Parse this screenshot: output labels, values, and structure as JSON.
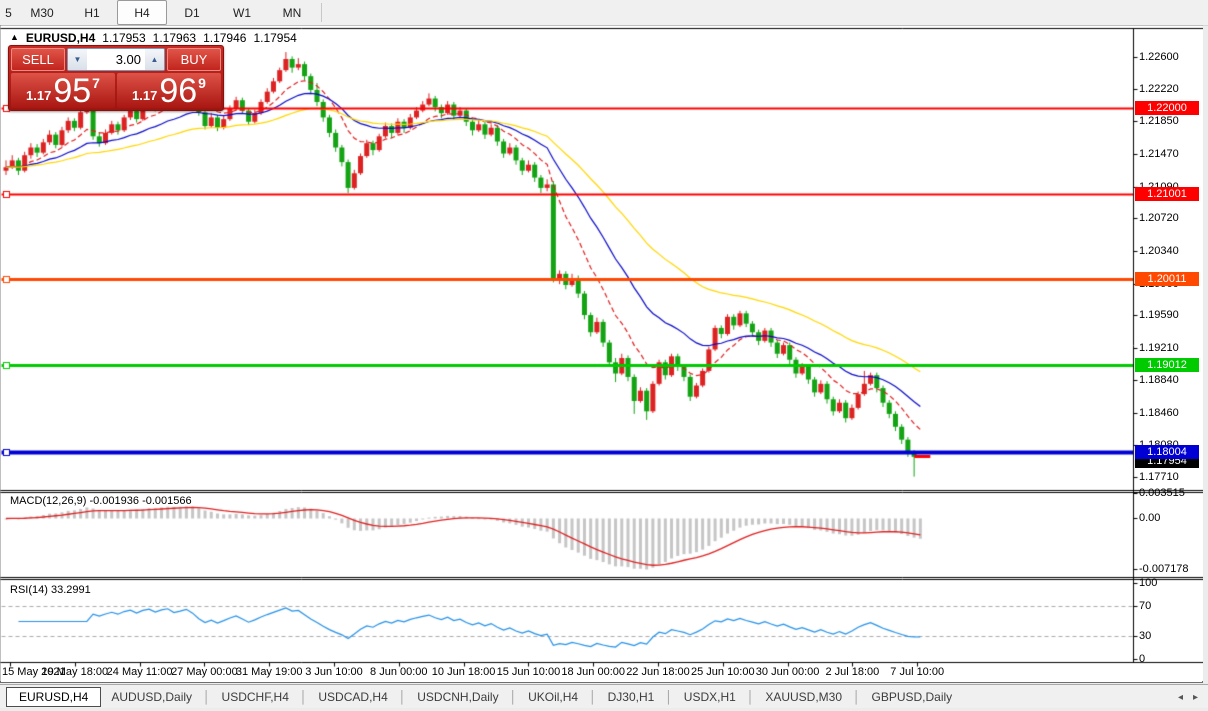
{
  "toolbar": {
    "timeframes": [
      "5",
      "M30",
      "H1",
      "H4",
      "D1",
      "W1",
      "MN"
    ],
    "active": "H4"
  },
  "header": {
    "collapse_icon": "▲",
    "symbol": "EURUSD,H4",
    "open": "1.17953",
    "high": "1.17963",
    "low": "1.17946",
    "close": "1.17954"
  },
  "trade_panel": {
    "sell_label": "SELL",
    "buy_label": "BUY",
    "volume": "3.00",
    "spinner_down_icon": "▼",
    "spinner_up_icon": "▲",
    "sell_price": {
      "prefix": "1.17",
      "big": "95",
      "sup": "7"
    },
    "buy_price": {
      "prefix": "1.17",
      "big": "96",
      "sup": "9"
    }
  },
  "price_axis": {
    "ticks": [
      "1.22600",
      "1.22220",
      "1.21850",
      "1.21470",
      "1.21090",
      "1.20720",
      "1.20340",
      "1.19960",
      "1.19590",
      "1.19210",
      "1.18840",
      "1.18460",
      "1.18080",
      "1.17710"
    ]
  },
  "macd_pane": {
    "label": "MACD(12,26,9) -0.001936 -0.001566",
    "ticks": [
      "0.003515",
      "0.00",
      "-0.007178"
    ]
  },
  "rsi_pane": {
    "label": "RSI(14) 33.2991",
    "ticks": [
      "100",
      "70",
      "30",
      "0"
    ],
    "levels": [
      70,
      30
    ]
  },
  "time_axis": {
    "labels": [
      "15 May 2021",
      "19 May 18:00",
      "24 May 11:00",
      "27 May 00:00",
      "31 May 19:00",
      "3 Jun 10:00",
      "8 Jun 00:00",
      "10 Jun 18:00",
      "15 Jun 10:00",
      "18 Jun 00:00",
      "22 Jun 18:00",
      "25 Jun 10:00",
      "30 Jun 00:00",
      "2 Jul 18:00",
      "7 Jul 10:00"
    ]
  },
  "tabs": {
    "items": [
      "EURUSD,H4",
      "AUDUSD,Daily",
      "USDCHF,H4",
      "USDCAD,H4",
      "USDCNH,Daily",
      "UKOil,H4",
      "DJ30,H1",
      "USDX,H1",
      "XAUUSD,M30",
      "GBPUSD,Daily"
    ],
    "active": "EURUSD,H4",
    "nav_left_icon": "◂",
    "nav_right_icon": "▸"
  },
  "chart_data": {
    "type": "candlestick",
    "symbol": "EURUSD",
    "timeframe": "H4",
    "ylim": [
      1.1757,
      1.229
    ],
    "bull_color": "#dd2222",
    "bear_color": "#13a313",
    "hlines": [
      {
        "label": "1.22000",
        "value": 1.22,
        "color": "#fe0000",
        "width": 2
      },
      {
        "label": "1.21001",
        "value": 1.21001,
        "color": "#fe0000",
        "width": 2
      },
      {
        "label": "1.20011",
        "value": 1.20011,
        "color": "#ff4800",
        "width": 3
      },
      {
        "label": "1.19012",
        "value": 1.19012,
        "color": "#00ca00",
        "width": 3
      },
      {
        "label": "1.18004",
        "value": 1.18004,
        "color": "#0000d4",
        "width": 4
      }
    ],
    "current_price": {
      "label": "1.17954",
      "value": 1.17954,
      "tag_color": "#000000",
      "dash_color": "#fe0000"
    },
    "overlays": [
      {
        "name": "MA-fast",
        "period": 10,
        "color": "#e02020",
        "dashed": true
      },
      {
        "name": "MA-mid",
        "period": 22,
        "color": "#0a0ac8",
        "dashed": false
      },
      {
        "name": "MA-slow",
        "period": 45,
        "color": "#ffd700",
        "dashed": false
      }
    ],
    "indicators": [
      {
        "name": "MACD",
        "params": [
          12,
          26,
          9
        ],
        "values": [
          -0.001936,
          -0.001566
        ],
        "hist_color": "#c6c6c6",
        "signal_color": "#e02020",
        "range": [
          -0.007178,
          0.003515
        ]
      },
      {
        "name": "RSI",
        "params": [
          14
        ],
        "value": 33.2991,
        "color": "#2491e8",
        "levels": [
          70,
          30
        ]
      }
    ],
    "candles": [
      [
        1.2128,
        1.214,
        1.2123,
        1.2132
      ],
      [
        1.2132,
        1.2146,
        1.213,
        1.214
      ],
      [
        1.214,
        1.2143,
        1.2123,
        1.2128
      ],
      [
        1.2128,
        1.215,
        1.2126,
        1.2146
      ],
      [
        1.2146,
        1.216,
        1.2142,
        1.2155
      ],
      [
        1.2155,
        1.2159,
        1.2144,
        1.2149
      ],
      [
        1.2149,
        1.2165,
        1.2147,
        1.2161
      ],
      [
        1.2161,
        1.2175,
        1.2158,
        1.217
      ],
      [
        1.217,
        1.2173,
        1.2154,
        1.2158
      ],
      [
        1.2158,
        1.2179,
        1.2156,
        1.2175
      ],
      [
        1.2175,
        1.219,
        1.2172,
        1.2186
      ],
      [
        1.2186,
        1.2189,
        1.2174,
        1.2178
      ],
      [
        1.2178,
        1.2199,
        1.2176,
        1.2196
      ],
      [
        1.2196,
        1.2212,
        1.2194,
        1.2205
      ],
      [
        1.2205,
        1.2208,
        1.2164,
        1.2168
      ],
      [
        1.2168,
        1.2173,
        1.2156,
        1.216
      ],
      [
        1.216,
        1.2176,
        1.2158,
        1.2172
      ],
      [
        1.2172,
        1.2186,
        1.217,
        1.2182
      ],
      [
        1.2182,
        1.2185,
        1.217,
        1.2175
      ],
      [
        1.2175,
        1.2193,
        1.2173,
        1.219
      ],
      [
        1.219,
        1.2202,
        1.2187,
        1.2198
      ],
      [
        1.2198,
        1.2201,
        1.2184,
        1.2188
      ],
      [
        1.2188,
        1.2207,
        1.2186,
        1.2204
      ],
      [
        1.2204,
        1.2216,
        1.2201,
        1.2212
      ],
      [
        1.2212,
        1.2215,
        1.2197,
        1.2202
      ],
      [
        1.2202,
        1.2219,
        1.22,
        1.2215
      ],
      [
        1.2215,
        1.2226,
        1.2212,
        1.2222
      ],
      [
        1.2222,
        1.2225,
        1.2206,
        1.221
      ],
      [
        1.221,
        1.2223,
        1.2208,
        1.2218
      ],
      [
        1.2218,
        1.2232,
        1.2216,
        1.2228
      ],
      [
        1.2228,
        1.2231,
        1.2212,
        1.2216
      ],
      [
        1.2216,
        1.2219,
        1.2192,
        1.2196
      ],
      [
        1.2196,
        1.2199,
        1.2176,
        1.218
      ],
      [
        1.218,
        1.2195,
        1.2178,
        1.219
      ],
      [
        1.219,
        1.2193,
        1.2174,
        1.2178
      ],
      [
        1.2178,
        1.2192,
        1.2176,
        1.2188
      ],
      [
        1.2188,
        1.2204,
        1.2186,
        1.22
      ],
      [
        1.22,
        1.2214,
        1.2198,
        1.221
      ],
      [
        1.221,
        1.2213,
        1.2194,
        1.2198
      ],
      [
        1.2198,
        1.2201,
        1.2181,
        1.2185
      ],
      [
        1.2185,
        1.2199,
        1.2183,
        1.2195
      ],
      [
        1.2195,
        1.2211,
        1.2193,
        1.2208
      ],
      [
        1.2208,
        1.2224,
        1.2206,
        1.222
      ],
      [
        1.222,
        1.2236,
        1.2218,
        1.2232
      ],
      [
        1.2232,
        1.2248,
        1.223,
        1.2245
      ],
      [
        1.2245,
        1.2266,
        1.2243,
        1.2258
      ],
      [
        1.2258,
        1.2261,
        1.2242,
        1.2248
      ],
      [
        1.2248,
        1.2259,
        1.2245,
        1.2252
      ],
      [
        1.2252,
        1.2255,
        1.2233,
        1.2238
      ],
      [
        1.2238,
        1.2241,
        1.2217,
        1.2222
      ],
      [
        1.2222,
        1.223,
        1.2203,
        1.2208
      ],
      [
        1.2208,
        1.2211,
        1.2185,
        1.219
      ],
      [
        1.219,
        1.2193,
        1.2167,
        1.2172
      ],
      [
        1.2172,
        1.2176,
        1.215,
        1.2155
      ],
      [
        1.2155,
        1.2158,
        1.2133,
        1.2138
      ],
      [
        1.2138,
        1.2141,
        1.2102,
        1.2108
      ],
      [
        1.2108,
        1.2129,
        1.2106,
        1.2125
      ],
      [
        1.2125,
        1.2148,
        1.2123,
        1.2145
      ],
      [
        1.2145,
        1.2164,
        1.2143,
        1.216
      ],
      [
        1.216,
        1.2163,
        1.2146,
        1.2152
      ],
      [
        1.2152,
        1.2171,
        1.215,
        1.2168
      ],
      [
        1.2168,
        1.2184,
        1.2166,
        1.218
      ],
      [
        1.218,
        1.2183,
        1.2166,
        1.2172
      ],
      [
        1.2172,
        1.2189,
        1.217,
        1.2185
      ],
      [
        1.2185,
        1.2188,
        1.2172,
        1.2178
      ],
      [
        1.2178,
        1.2194,
        1.2176,
        1.219
      ],
      [
        1.219,
        1.2202,
        1.2188,
        1.2198
      ],
      [
        1.2198,
        1.2209,
        1.2196,
        1.2205
      ],
      [
        1.2205,
        1.2218,
        1.2203,
        1.2212
      ],
      [
        1.2212,
        1.2215,
        1.2197,
        1.2202
      ],
      [
        1.2202,
        1.2205,
        1.2189,
        1.2195
      ],
      [
        1.2195,
        1.2209,
        1.2193,
        1.2205
      ],
      [
        1.2205,
        1.2208,
        1.2187,
        1.2192
      ],
      [
        1.2192,
        1.2202,
        1.219,
        1.2198
      ],
      [
        1.2198,
        1.2201,
        1.218,
        1.2185
      ],
      [
        1.2185,
        1.2188,
        1.2169,
        1.2175
      ],
      [
        1.2175,
        1.2187,
        1.2173,
        1.2182
      ],
      [
        1.2182,
        1.2185,
        1.2165,
        1.217
      ],
      [
        1.217,
        1.2182,
        1.2168,
        1.2178
      ],
      [
        1.2178,
        1.2181,
        1.2157,
        1.2162
      ],
      [
        1.2162,
        1.2165,
        1.2143,
        1.2148
      ],
      [
        1.2148,
        1.216,
        1.2146,
        1.2155
      ],
      [
        1.2155,
        1.2158,
        1.2135,
        1.214
      ],
      [
        1.214,
        1.2143,
        1.2123,
        1.2128
      ],
      [
        1.2128,
        1.214,
        1.2126,
        1.2135
      ],
      [
        1.2135,
        1.2138,
        1.2115,
        1.212
      ],
      [
        1.212,
        1.2123,
        1.2102,
        1.2108
      ],
      [
        1.2108,
        1.2118,
        1.2104,
        1.2112
      ],
      [
        1.2112,
        1.2116,
        1.1998,
        1.2002
      ],
      [
        1.2002,
        1.2012,
        1.1996,
        1.2008
      ],
      [
        1.2008,
        1.2011,
        1.199,
        1.1995
      ],
      [
        1.1995,
        1.2008,
        1.1993,
        1.2003
      ],
      [
        1.2003,
        1.2006,
        1.198,
        1.1985
      ],
      [
        1.1985,
        1.1988,
        1.1955,
        1.196
      ],
      [
        1.196,
        1.1963,
        1.1935,
        1.194
      ],
      [
        1.194,
        1.1957,
        1.1938,
        1.1952
      ],
      [
        1.1952,
        1.1955,
        1.1923,
        1.1928
      ],
      [
        1.1928,
        1.1931,
        1.19,
        1.1905
      ],
      [
        1.1905,
        1.191,
        1.1882,
        1.1892
      ],
      [
        1.1892,
        1.1915,
        1.189,
        1.191
      ],
      [
        1.191,
        1.1913,
        1.1883,
        1.1888
      ],
      [
        1.1888,
        1.1891,
        1.1845,
        1.186
      ],
      [
        1.186,
        1.1876,
        1.1858,
        1.1872
      ],
      [
        1.1872,
        1.1875,
        1.1838,
        1.1848
      ],
      [
        1.1848,
        1.1883,
        1.1846,
        1.188
      ],
      [
        1.188,
        1.1908,
        1.1878,
        1.1905
      ],
      [
        1.1905,
        1.1908,
        1.1885,
        1.189
      ],
      [
        1.189,
        1.1915,
        1.1888,
        1.1912
      ],
      [
        1.1912,
        1.1915,
        1.1895,
        1.19
      ],
      [
        1.19,
        1.1903,
        1.1883,
        1.1888
      ],
      [
        1.1888,
        1.1891,
        1.186,
        1.1865
      ],
      [
        1.1865,
        1.1881,
        1.1863,
        1.1878
      ],
      [
        1.1878,
        1.1898,
        1.1876,
        1.1895
      ],
      [
        1.1895,
        1.1923,
        1.1893,
        1.192
      ],
      [
        1.192,
        1.1948,
        1.1918,
        1.1945
      ],
      [
        1.1945,
        1.1948,
        1.1933,
        1.1938
      ],
      [
        1.1938,
        1.1961,
        1.1936,
        1.1958
      ],
      [
        1.1958,
        1.1961,
        1.1943,
        1.1948
      ],
      [
        1.1948,
        1.1965,
        1.1946,
        1.1962
      ],
      [
        1.1962,
        1.1965,
        1.1946,
        1.195
      ],
      [
        1.195,
        1.1953,
        1.1935,
        1.194
      ],
      [
        1.194,
        1.1943,
        1.1925,
        1.193
      ],
      [
        1.193,
        1.1945,
        1.1928,
        1.1942
      ],
      [
        1.1942,
        1.1945,
        1.1923,
        1.1928
      ],
      [
        1.1928,
        1.1931,
        1.191,
        1.1915
      ],
      [
        1.1915,
        1.1928,
        1.1913,
        1.1925
      ],
      [
        1.1925,
        1.1928,
        1.1903,
        1.1908
      ],
      [
        1.1908,
        1.1911,
        1.1887,
        1.1892
      ],
      [
        1.1892,
        1.1904,
        1.189,
        1.19
      ],
      [
        1.19,
        1.1903,
        1.188,
        1.1885
      ],
      [
        1.1885,
        1.1888,
        1.1865,
        1.187
      ],
      [
        1.187,
        1.1884,
        1.1868,
        1.188
      ],
      [
        1.188,
        1.1883,
        1.1857,
        1.1862
      ],
      [
        1.1862,
        1.1865,
        1.1843,
        1.1848
      ],
      [
        1.1848,
        1.1862,
        1.1846,
        1.1858
      ],
      [
        1.1858,
        1.1861,
        1.1835,
        1.184
      ],
      [
        1.184,
        1.1856,
        1.1838,
        1.1852
      ],
      [
        1.1852,
        1.1871,
        1.185,
        1.1868
      ],
      [
        1.1868,
        1.1895,
        1.1866,
        1.188
      ],
      [
        1.188,
        1.1893,
        1.1878,
        1.189
      ],
      [
        1.189,
        1.1893,
        1.187,
        1.1875
      ],
      [
        1.1875,
        1.1878,
        1.1853,
        1.1858
      ],
      [
        1.1858,
        1.1861,
        1.184,
        1.1845
      ],
      [
        1.1845,
        1.1848,
        1.1825,
        1.183
      ],
      [
        1.183,
        1.1833,
        1.181,
        1.1815
      ],
      [
        1.1815,
        1.1818,
        1.1795,
        1.18
      ],
      [
        1.18,
        1.1803,
        1.1772,
        1.1795
      ],
      [
        1.17953,
        1.17963,
        1.17946,
        1.17954
      ]
    ]
  }
}
